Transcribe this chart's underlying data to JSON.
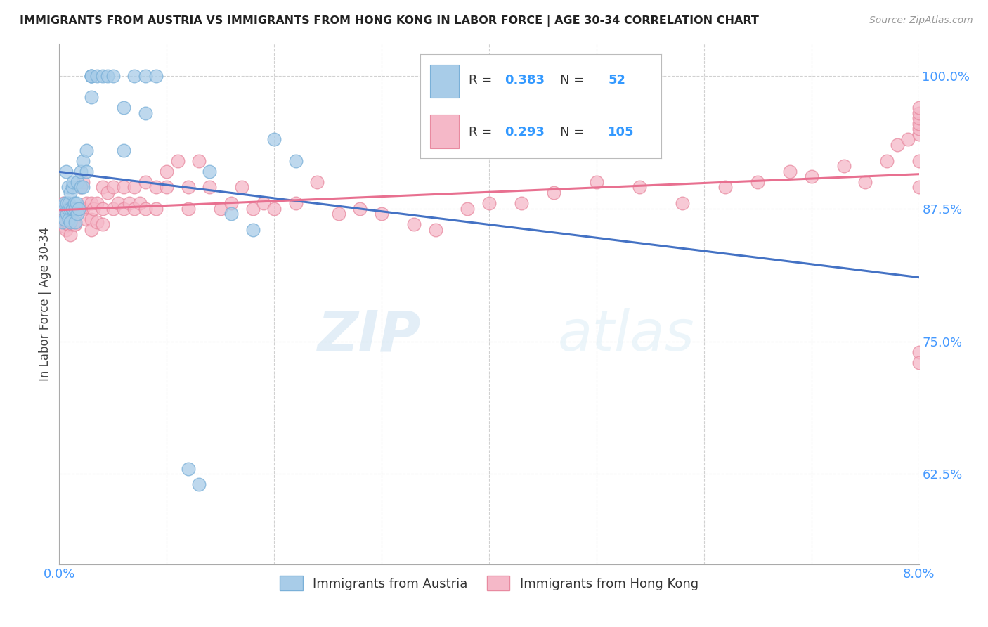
{
  "title": "IMMIGRANTS FROM AUSTRIA VS IMMIGRANTS FROM HONG KONG IN LABOR FORCE | AGE 30-34 CORRELATION CHART",
  "source": "Source: ZipAtlas.com",
  "ylabel": "In Labor Force | Age 30-34",
  "xlim": [
    0.0,
    0.08
  ],
  "ylim": [
    0.54,
    1.03
  ],
  "yticks": [
    0.625,
    0.75,
    0.875,
    1.0
  ],
  "yticklabels": [
    "62.5%",
    "75.0%",
    "87.5%",
    "100.0%"
  ],
  "austria_color": "#a8cce8",
  "austria_edge": "#7ab0d8",
  "hk_color": "#f5b8c8",
  "hk_edge": "#e88aa0",
  "austria_line_color": "#4472c4",
  "hk_line_color": "#e87090",
  "austria_R": 0.383,
  "austria_N": 52,
  "hk_R": 0.293,
  "hk_N": 105,
  "legend_label_blue": "Immigrants from Austria",
  "legend_label_pink": "Immigrants from Hong Kong",
  "watermark_zip": "ZIP",
  "watermark_atlas": "atlas",
  "background_color": "#ffffff",
  "austria_x": [
    0.0003,
    0.0003,
    0.0005,
    0.0005,
    0.0006,
    0.0007,
    0.0007,
    0.0008,
    0.0008,
    0.0009,
    0.0009,
    0.001,
    0.001,
    0.001,
    0.0012,
    0.0012,
    0.0013,
    0.0013,
    0.0014,
    0.0015,
    0.0015,
    0.0016,
    0.0017,
    0.0017,
    0.0018,
    0.002,
    0.002,
    0.0022,
    0.0022,
    0.0025,
    0.0025,
    0.003,
    0.003,
    0.003,
    0.003,
    0.0035,
    0.004,
    0.0045,
    0.005,
    0.006,
    0.006,
    0.007,
    0.008,
    0.008,
    0.009,
    0.012,
    0.013,
    0.014,
    0.016,
    0.018,
    0.02,
    0.022
  ],
  "austria_y": [
    0.875,
    0.862,
    0.88,
    0.865,
    0.91,
    0.88,
    0.87,
    0.895,
    0.875,
    0.88,
    0.865,
    0.89,
    0.875,
    0.862,
    0.895,
    0.875,
    0.9,
    0.875,
    0.88,
    0.875,
    0.862,
    0.88,
    0.9,
    0.87,
    0.875,
    0.91,
    0.895,
    0.92,
    0.895,
    0.93,
    0.91,
    1.0,
    1.0,
    1.0,
    0.98,
    1.0,
    1.0,
    1.0,
    1.0,
    0.97,
    0.93,
    1.0,
    1.0,
    0.965,
    1.0,
    0.63,
    0.615,
    0.91,
    0.87,
    0.855,
    0.94,
    0.92
  ],
  "hk_x": [
    0.0003,
    0.0003,
    0.0004,
    0.0004,
    0.0005,
    0.0005,
    0.0006,
    0.0006,
    0.0007,
    0.0007,
    0.0008,
    0.0008,
    0.0009,
    0.0009,
    0.001,
    0.001,
    0.001,
    0.0011,
    0.0011,
    0.0012,
    0.0012,
    0.0013,
    0.0013,
    0.0014,
    0.0014,
    0.0015,
    0.0015,
    0.0016,
    0.0017,
    0.0018,
    0.002,
    0.002,
    0.0022,
    0.0022,
    0.0025,
    0.0025,
    0.003,
    0.003,
    0.003,
    0.0032,
    0.0035,
    0.0035,
    0.004,
    0.004,
    0.004,
    0.0045,
    0.005,
    0.005,
    0.0055,
    0.006,
    0.006,
    0.0065,
    0.007,
    0.007,
    0.0075,
    0.008,
    0.008,
    0.009,
    0.009,
    0.01,
    0.01,
    0.011,
    0.012,
    0.012,
    0.013,
    0.014,
    0.015,
    0.016,
    0.017,
    0.018,
    0.019,
    0.02,
    0.022,
    0.024,
    0.026,
    0.028,
    0.03,
    0.033,
    0.035,
    0.038,
    0.04,
    0.043,
    0.046,
    0.05,
    0.054,
    0.058,
    0.062,
    0.065,
    0.068,
    0.07,
    0.073,
    0.075,
    0.077,
    0.078,
    0.079,
    0.08,
    0.08,
    0.08,
    0.08,
    0.08,
    0.08,
    0.08,
    0.08,
    0.08,
    0.08,
    0.08
  ],
  "hk_y": [
    0.875,
    0.862,
    0.88,
    0.865,
    0.875,
    0.858,
    0.87,
    0.855,
    0.875,
    0.862,
    0.875,
    0.86,
    0.875,
    0.86,
    0.875,
    0.862,
    0.85,
    0.875,
    0.862,
    0.875,
    0.86,
    0.875,
    0.862,
    0.875,
    0.86,
    0.875,
    0.86,
    0.875,
    0.875,
    0.875,
    0.895,
    0.875,
    0.9,
    0.875,
    0.88,
    0.865,
    0.88,
    0.865,
    0.855,
    0.875,
    0.88,
    0.862,
    0.895,
    0.875,
    0.86,
    0.89,
    0.895,
    0.875,
    0.88,
    0.895,
    0.875,
    0.88,
    0.895,
    0.875,
    0.88,
    0.9,
    0.875,
    0.895,
    0.875,
    0.91,
    0.895,
    0.92,
    0.895,
    0.875,
    0.92,
    0.895,
    0.875,
    0.88,
    0.895,
    0.875,
    0.88,
    0.875,
    0.88,
    0.9,
    0.87,
    0.875,
    0.87,
    0.86,
    0.855,
    0.875,
    0.88,
    0.88,
    0.89,
    0.9,
    0.895,
    0.88,
    0.895,
    0.9,
    0.91,
    0.905,
    0.915,
    0.9,
    0.92,
    0.935,
    0.94,
    0.945,
    0.95,
    0.955,
    0.96,
    0.965,
    0.97,
    0.74,
    0.73,
    0.92,
    0.895
  ]
}
